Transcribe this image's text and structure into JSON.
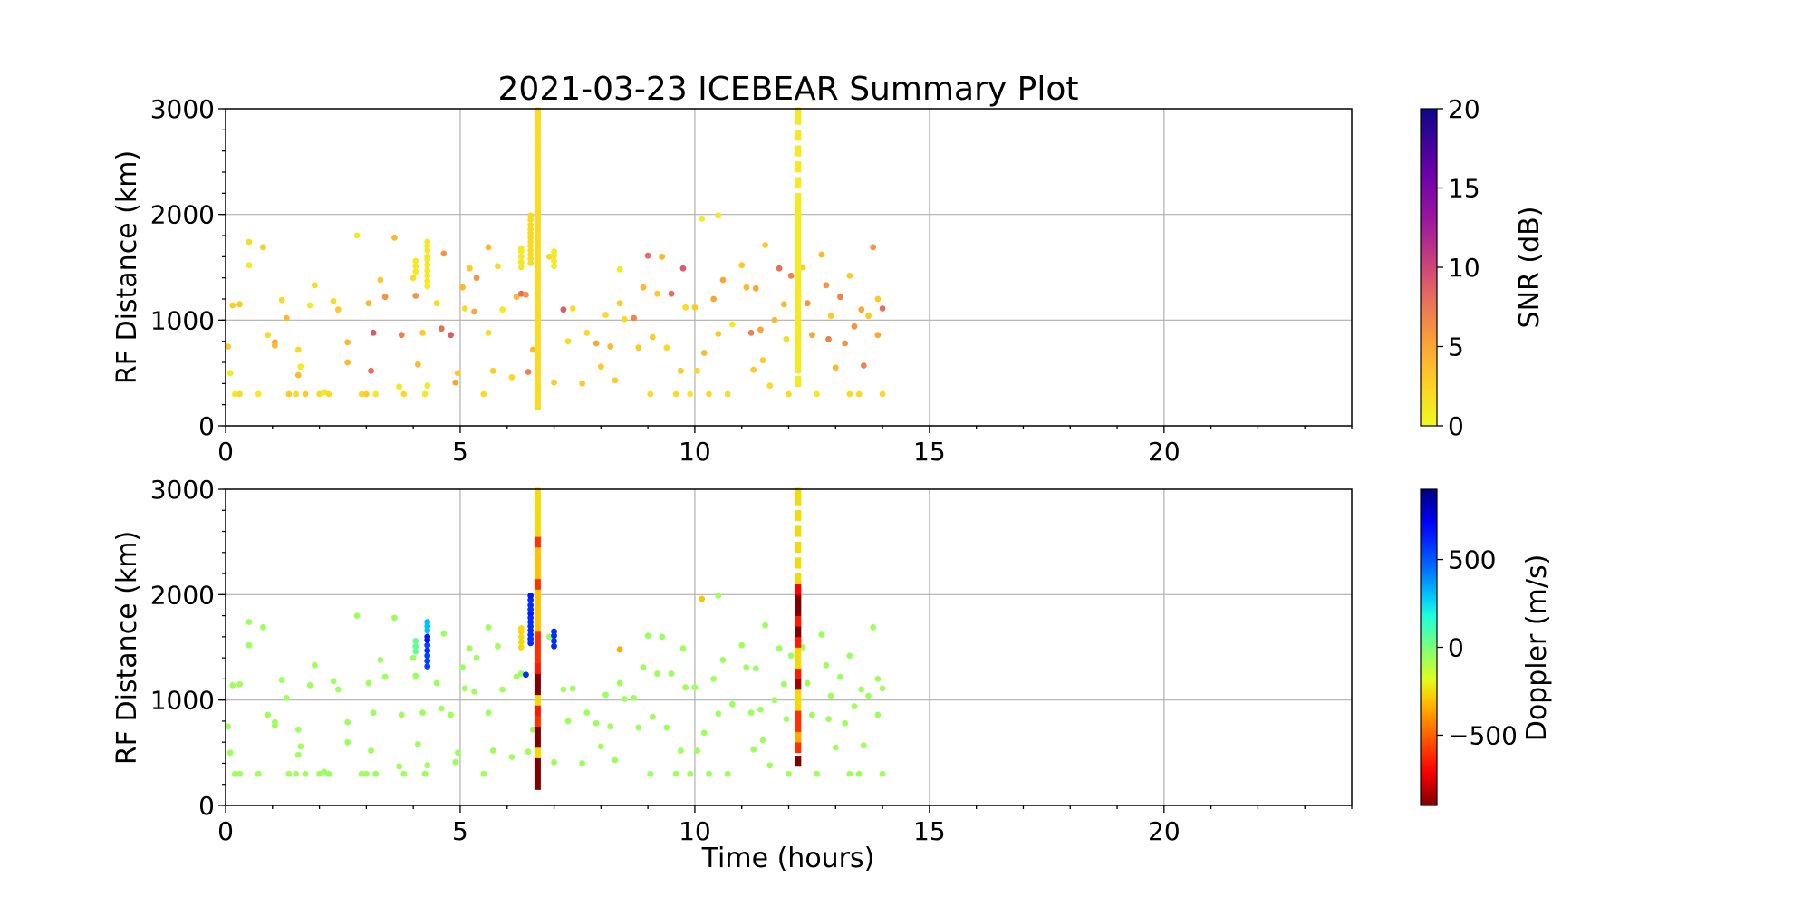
{
  "chart_data": [
    {
      "type": "scatter",
      "title": "2021-03-23 ICEBEAR Summary Plot",
      "xlabel": "",
      "ylabel": "RF Distance (km)",
      "xlim": [
        0,
        24
      ],
      "ylim": [
        0,
        3000
      ],
      "xticks": [
        "0",
        "5",
        "10",
        "15",
        "20"
      ],
      "yticks": [
        "0",
        "1000",
        "2000",
        "3000"
      ],
      "grid": true,
      "color_by": "snr",
      "colorbar": {
        "label": "SNR (dB)",
        "colormap": "plasma_r",
        "range": [
          0,
          20
        ],
        "ticks": [
          "0",
          "5",
          "10",
          "15",
          "20"
        ]
      }
    },
    {
      "type": "scatter",
      "title": "",
      "xlabel": "Time (hours)",
      "ylabel": "RF Distance (km)",
      "xlim": [
        0,
        24
      ],
      "ylim": [
        0,
        3000
      ],
      "xticks": [
        "0",
        "5",
        "10",
        "15",
        "20"
      ],
      "yticks": [
        "0",
        "1000",
        "2000",
        "3000"
      ],
      "grid": true,
      "color_by": "doppler",
      "colorbar": {
        "label": "Doppler (m/s)",
        "colormap": "jet",
        "range": [
          -900,
          900
        ],
        "ticks": [
          "−500",
          "0",
          "500"
        ],
        "tick_values": [
          -500,
          0,
          500
        ]
      }
    }
  ],
  "points_fields": [
    "time_hours",
    "rf_distance_km",
    "snr_db",
    "doppler_ms"
  ],
  "points": [
    [
      0.05,
      750,
      3,
      -60
    ],
    [
      0.1,
      500,
      1,
      -60
    ],
    [
      0.2,
      300,
      1,
      -60
    ],
    [
      0.3,
      300,
      2,
      -60
    ],
    [
      0.15,
      1140,
      3,
      -60
    ],
    [
      0.3,
      1150,
      3,
      -60
    ],
    [
      0.5,
      1520,
      1,
      -60
    ],
    [
      0.5,
      1740,
      2,
      -60
    ],
    [
      0.7,
      300,
      1,
      -60
    ],
    [
      0.8,
      1690,
      3,
      -60
    ],
    [
      0.9,
      860,
      2,
      -60
    ],
    [
      1.05,
      790,
      5,
      -60
    ],
    [
      1.05,
      760,
      4,
      -60
    ],
    [
      1.2,
      1190,
      2,
      -60
    ],
    [
      1.3,
      1020,
      4,
      -60
    ],
    [
      1.35,
      300,
      3,
      -60
    ],
    [
      1.5,
      300,
      2,
      -60
    ],
    [
      1.55,
      480,
      4,
      -60
    ],
    [
      1.55,
      720,
      2,
      -60
    ],
    [
      1.6,
      560,
      1,
      -60
    ],
    [
      1.7,
      300,
      3,
      -60
    ],
    [
      1.8,
      1140,
      1,
      -60
    ],
    [
      1.9,
      1330,
      2,
      -60
    ],
    [
      2.0,
      300,
      2,
      -60
    ],
    [
      2.1,
      320,
      1,
      -60
    ],
    [
      2.2,
      300,
      2,
      -60
    ],
    [
      2.3,
      1180,
      2,
      -60
    ],
    [
      2.4,
      1100,
      3,
      -60
    ],
    [
      2.6,
      790,
      4,
      -60
    ],
    [
      2.6,
      600,
      4,
      -60
    ],
    [
      2.8,
      1800,
      1,
      -60
    ],
    [
      2.9,
      300,
      2,
      -60
    ],
    [
      3.0,
      300,
      3,
      -60
    ],
    [
      3.05,
      1160,
      4,
      -60
    ],
    [
      3.1,
      520,
      8,
      -60
    ],
    [
      3.15,
      880,
      9,
      -60
    ],
    [
      3.2,
      300,
      1,
      -60
    ],
    [
      3.3,
      1380,
      3,
      -60
    ],
    [
      3.4,
      1220,
      6,
      -60
    ],
    [
      3.6,
      1780,
      4,
      -60
    ],
    [
      3.7,
      370,
      1,
      -60
    ],
    [
      3.75,
      860,
      7,
      -60
    ],
    [
      3.8,
      300,
      2,
      -60
    ],
    [
      4.0,
      1400,
      2,
      -60
    ],
    [
      4.05,
      1230,
      6,
      -60
    ],
    [
      4.1,
      580,
      4,
      -60
    ],
    [
      4.2,
      880,
      3,
      -60
    ],
    [
      4.25,
      300,
      1,
      -60
    ],
    [
      4.3,
      380,
      1,
      -60
    ],
    [
      4.5,
      1160,
      2,
      -60
    ],
    [
      4.6,
      920,
      8,
      -60
    ],
    [
      4.65,
      1630,
      6,
      -60
    ],
    [
      4.8,
      860,
      9,
      -60
    ],
    [
      4.9,
      410,
      5,
      -60
    ],
    [
      4.95,
      500,
      3,
      -60
    ],
    [
      5.05,
      1310,
      4,
      -60
    ],
    [
      5.1,
      1110,
      2,
      -60
    ],
    [
      5.2,
      1490,
      3,
      -60
    ],
    [
      5.3,
      1080,
      5,
      -60
    ],
    [
      5.35,
      1400,
      6,
      -60
    ],
    [
      5.5,
      300,
      2,
      -60
    ],
    [
      5.6,
      880,
      2,
      -60
    ],
    [
      5.6,
      1690,
      4,
      -60
    ],
    [
      5.7,
      520,
      3,
      -60
    ],
    [
      5.8,
      1510,
      2,
      -60
    ],
    [
      5.9,
      1100,
      1,
      -60
    ],
    [
      6.1,
      460,
      2,
      -60
    ],
    [
      6.2,
      1220,
      4,
      -60
    ],
    [
      6.3,
      1250,
      8,
      -60
    ],
    [
      6.4,
      1240,
      6,
      600
    ],
    [
      6.45,
      510,
      7,
      -60
    ],
    [
      6.55,
      720,
      4,
      -60
    ],
    [
      6.9,
      1600,
      2,
      -60
    ],
    [
      7.0,
      410,
      3,
      -60
    ],
    [
      7.2,
      1100,
      9,
      -60
    ],
    [
      7.3,
      800,
      2,
      -60
    ],
    [
      7.4,
      1110,
      2,
      -60
    ],
    [
      7.6,
      400,
      3,
      -60
    ],
    [
      7.7,
      880,
      2,
      -60
    ],
    [
      7.9,
      780,
      5,
      -60
    ],
    [
      8.0,
      560,
      3,
      -60
    ],
    [
      8.1,
      1050,
      2,
      -60
    ],
    [
      8.2,
      750,
      4,
      -60
    ],
    [
      8.3,
      430,
      3,
      -60
    ],
    [
      8.4,
      1160,
      3,
      -60
    ],
    [
      8.4,
      1480,
      1,
      -350
    ],
    [
      8.5,
      1010,
      2,
      -60
    ],
    [
      8.7,
      1020,
      7,
      -60
    ],
    [
      8.8,
      740,
      3,
      -60
    ],
    [
      8.9,
      1310,
      4,
      -60
    ],
    [
      9.0,
      1610,
      8,
      -60
    ],
    [
      9.05,
      300,
      2,
      -60
    ],
    [
      9.1,
      840,
      3,
      -60
    ],
    [
      9.2,
      1250,
      3,
      -60
    ],
    [
      9.3,
      1600,
      4,
      -60
    ],
    [
      9.4,
      740,
      2,
      -60
    ],
    [
      9.5,
      1250,
      8,
      -60
    ],
    [
      9.6,
      300,
      2,
      -60
    ],
    [
      9.7,
      520,
      3,
      -60
    ],
    [
      9.75,
      1490,
      9,
      -60
    ],
    [
      9.8,
      1120,
      2,
      -60
    ],
    [
      9.9,
      300,
      1,
      -60
    ],
    [
      10.0,
      1120,
      3,
      -60
    ],
    [
      10.05,
      520,
      2,
      -60
    ],
    [
      10.15,
      1960,
      1,
      -300
    ],
    [
      10.2,
      690,
      4,
      -60
    ],
    [
      10.3,
      300,
      2,
      -60
    ],
    [
      10.4,
      1200,
      5,
      -60
    ],
    [
      10.5,
      1990,
      1,
      -60
    ],
    [
      10.5,
      870,
      3,
      -60
    ],
    [
      10.6,
      1380,
      5,
      -60
    ],
    [
      10.7,
      300,
      2,
      -60
    ],
    [
      10.8,
      960,
      1,
      -60
    ],
    [
      11.0,
      1520,
      3,
      -60
    ],
    [
      11.1,
      1310,
      4,
      -60
    ],
    [
      11.2,
      880,
      7,
      -60
    ],
    [
      11.25,
      530,
      3,
      -60
    ],
    [
      11.3,
      1300,
      5,
      -60
    ],
    [
      11.4,
      910,
      5,
      -60
    ],
    [
      11.45,
      620,
      3,
      -60
    ],
    [
      11.5,
      1710,
      3,
      -60
    ],
    [
      11.6,
      380,
      2,
      -60
    ],
    [
      11.7,
      1000,
      4,
      -60
    ],
    [
      11.8,
      1490,
      8,
      -60
    ],
    [
      11.9,
      1150,
      4,
      -60
    ],
    [
      11.95,
      820,
      2,
      -60
    ],
    [
      12.0,
      300,
      2,
      -60
    ],
    [
      12.05,
      1420,
      7,
      -60
    ],
    [
      12.3,
      1500,
      3,
      -60
    ],
    [
      12.4,
      1160,
      6,
      -60
    ],
    [
      12.5,
      860,
      5,
      -60
    ],
    [
      12.6,
      300,
      1,
      -60
    ],
    [
      12.7,
      1620,
      4,
      -60
    ],
    [
      12.8,
      1330,
      6,
      -60
    ],
    [
      12.85,
      820,
      7,
      -60
    ],
    [
      12.9,
      1040,
      3,
      -60
    ],
    [
      13.0,
      550,
      4,
      -60
    ],
    [
      13.1,
      1220,
      7,
      -60
    ],
    [
      13.2,
      780,
      6,
      -60
    ],
    [
      13.3,
      1420,
      3,
      -60
    ],
    [
      13.3,
      300,
      2,
      -60
    ],
    [
      13.4,
      940,
      6,
      -60
    ],
    [
      13.5,
      300,
      2,
      -60
    ],
    [
      13.55,
      1100,
      5,
      -60
    ],
    [
      13.6,
      570,
      7,
      -60
    ],
    [
      13.7,
      1040,
      3,
      -60
    ],
    [
      13.8,
      1690,
      6,
      -60
    ],
    [
      13.9,
      860,
      5,
      -60
    ],
    [
      13.9,
      1200,
      3,
      -60
    ],
    [
      14.0,
      1110,
      8,
      -60
    ],
    [
      14.0,
      300,
      2,
      -60
    ],
    [
      4.3,
      1320,
      1,
      550
    ],
    [
      4.3,
      1370,
      1,
      550
    ],
    [
      4.3,
      1420,
      1,
      550
    ],
    [
      4.3,
      1470,
      1,
      600
    ],
    [
      4.3,
      1520,
      1,
      550
    ],
    [
      4.3,
      1570,
      1,
      650
    ],
    [
      4.3,
      1600,
      1,
      650
    ],
    [
      4.3,
      1660,
      1,
      300
    ],
    [
      4.3,
      1700,
      1,
      300
    ],
    [
      4.3,
      1740,
      1,
      300
    ],
    [
      4.05,
      1460,
      1,
      50
    ],
    [
      4.05,
      1510,
      1,
      50
    ],
    [
      4.05,
      1560,
      1,
      50
    ],
    [
      6.5,
      1540,
      2,
      600
    ],
    [
      6.5,
      1580,
      2,
      600
    ],
    [
      6.5,
      1620,
      2,
      600
    ],
    [
      6.5,
      1660,
      2,
      600
    ],
    [
      6.5,
      1700,
      2,
      600
    ],
    [
      6.5,
      1740,
      2,
      600
    ],
    [
      6.5,
      1780,
      2,
      600
    ],
    [
      6.5,
      1820,
      2,
      650
    ],
    [
      6.5,
      1860,
      2,
      600
    ],
    [
      6.5,
      1900,
      2,
      600
    ],
    [
      6.5,
      1950,
      2,
      600
    ],
    [
      6.5,
      1990,
      2,
      650
    ],
    [
      6.3,
      1500,
      1,
      -250
    ],
    [
      6.3,
      1550,
      1,
      -250
    ],
    [
      6.3,
      1600,
      1,
      -250
    ],
    [
      6.3,
      1650,
      1,
      -250
    ],
    [
      6.3,
      1680,
      1,
      -250
    ],
    [
      7.0,
      1510,
      1,
      600
    ],
    [
      7.0,
      1560,
      1,
      600
    ],
    [
      7.0,
      1610,
      1,
      600
    ],
    [
      7.0,
      1650,
      1,
      600
    ]
  ],
  "streaks": [
    {
      "time_hours": 6.65,
      "points": [
        [
          200,
          2,
          -900
        ],
        [
          300,
          2,
          -900
        ],
        [
          400,
          2,
          -900
        ],
        [
          500,
          2,
          -250
        ],
        [
          600,
          2,
          -900
        ],
        [
          700,
          2,
          -900
        ],
        [
          800,
          2,
          -600
        ],
        [
          900,
          2,
          -650
        ],
        [
          1000,
          2,
          -250
        ],
        [
          1100,
          2,
          -900
        ],
        [
          1200,
          2,
          -900
        ],
        [
          1300,
          2,
          -650
        ],
        [
          1400,
          2,
          -600
        ],
        [
          1500,
          2,
          -600
        ],
        [
          1600,
          2,
          -600
        ],
        [
          1700,
          2,
          -300
        ],
        [
          1800,
          2,
          -300
        ],
        [
          1900,
          2,
          -300
        ],
        [
          2000,
          2,
          -300
        ],
        [
          2100,
          2,
          -600
        ],
        [
          2200,
          2,
          -300
        ],
        [
          2300,
          2,
          -300
        ],
        [
          2400,
          2,
          -300
        ],
        [
          2500,
          2,
          -600
        ],
        [
          2600,
          2,
          -250
        ],
        [
          2700,
          2,
          -250
        ],
        [
          2800,
          2,
          -250
        ],
        [
          2900,
          2,
          -250
        ],
        [
          2960,
          2,
          -250
        ]
      ]
    },
    {
      "time_hours": 12.2,
      "points": [
        [
          420,
          1,
          -900
        ],
        [
          550,
          1,
          -600
        ],
        [
          650,
          1,
          -350
        ],
        [
          750,
          1,
          -600
        ],
        [
          850,
          1,
          -600
        ],
        [
          950,
          1,
          -250
        ],
        [
          1050,
          1,
          -250
        ],
        [
          1150,
          1,
          -850
        ],
        [
          1250,
          1,
          -650
        ],
        [
          1350,
          1,
          -250
        ],
        [
          1450,
          1,
          -250
        ],
        [
          1550,
          1,
          -650
        ],
        [
          1650,
          1,
          -900
        ],
        [
          1750,
          1,
          -650
        ],
        [
          1850,
          1,
          -900
        ],
        [
          1950,
          1,
          -900
        ],
        [
          2050,
          1,
          -700
        ],
        [
          2150,
          1,
          -250
        ],
        [
          2300,
          1,
          -250
        ],
        [
          2450,
          1,
          -250
        ],
        [
          2600,
          1,
          -250
        ],
        [
          2750,
          1,
          -250
        ],
        [
          2900,
          1,
          -250
        ],
        [
          2960,
          1,
          -250
        ]
      ]
    }
  ]
}
